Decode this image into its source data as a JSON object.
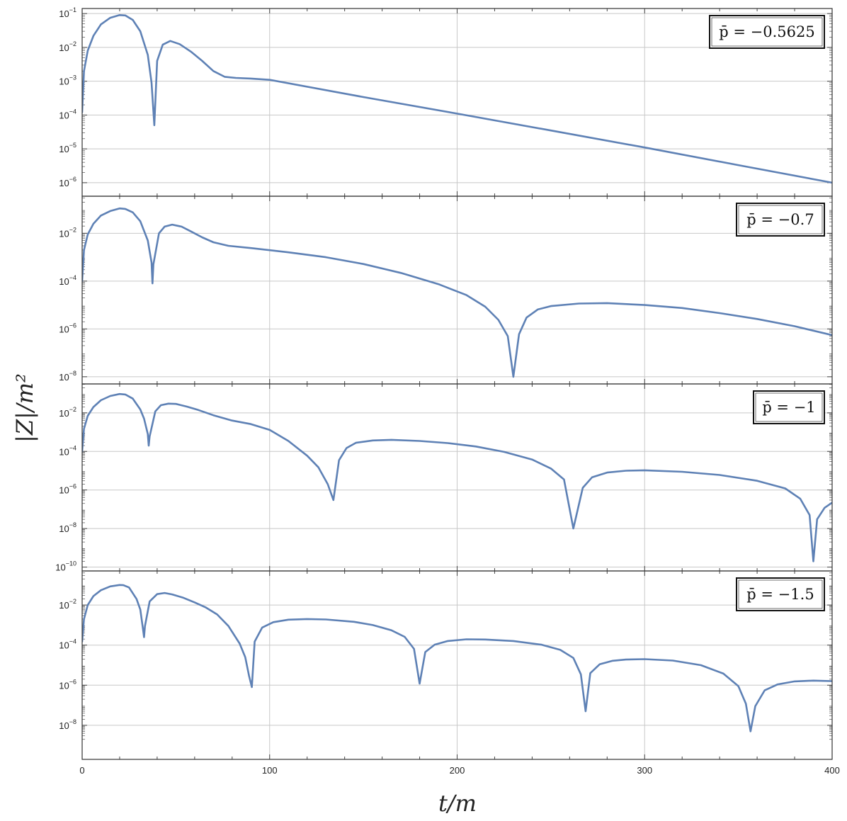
{
  "chart_data": {
    "type": "line",
    "xlabel": "t/m",
    "ylabel": "|Z|/m²",
    "xlim": [
      0,
      400
    ],
    "x_ticks": [
      0,
      100,
      200,
      300,
      400
    ],
    "x_tick_labels": [
      "0",
      "100",
      "200",
      "300",
      "400"
    ],
    "y_scale": "log",
    "grid": true,
    "line_color": "#5e81b5",
    "legend_position": "top-right",
    "panels": [
      {
        "label": "p̄ = −0.5625",
        "ylim_exp": [
          -6.4,
          -0.85
        ],
        "y_tick_exps": [
          -1,
          -2,
          -3,
          -4,
          -5,
          -6
        ],
        "series": [
          {
            "x": [
              0,
              1,
              3,
              6,
              10,
              15,
              20,
              23,
              27,
              31,
              35,
              37,
              38.5,
              40,
              43,
              47,
              52,
              58,
              64,
              70,
              76,
              82,
              90,
              100,
              150,
              200,
              250,
              300,
              350,
              400
            ],
            "y": [
              0.00012,
              0.002,
              0.008,
              0.022,
              0.048,
              0.075,
              0.09,
              0.088,
              0.065,
              0.03,
              0.006,
              0.0009,
              5e-05,
              0.004,
              0.012,
              0.0155,
              0.0125,
              0.0075,
              0.004,
              0.002,
              0.00135,
              0.00125,
              0.0012,
              0.0011,
              0.00034,
              0.00011,
              3.5e-05,
              1.1e-05,
              3.3e-06,
              1e-06
            ]
          }
        ]
      },
      {
        "label": "p̄ = −0.7",
        "ylim_exp": [
          -8.3,
          -0.45
        ],
        "y_tick_exps": [
          -2,
          -4,
          -6,
          -8
        ],
        "series": [
          {
            "x": [
              0,
              1,
              3,
              6,
              10,
              15,
              20,
              23,
              27,
              31,
              35,
              37,
              37.5,
              38,
              41,
              44,
              48,
              53,
              58,
              64,
              70,
              78,
              90,
              110,
              130,
              150,
              170,
              190,
              205,
              215,
              222,
              227,
              230,
              233,
              237,
              243,
              250,
              265,
              280,
              300,
              320,
              340,
              360,
              380,
              400
            ],
            "y": [
              0.0001,
              0.002,
              0.009,
              0.025,
              0.055,
              0.085,
              0.11,
              0.105,
              0.075,
              0.032,
              0.005,
              0.0006,
              8e-05,
              0.0005,
              0.01,
              0.019,
              0.023,
              0.019,
              0.012,
              0.0068,
              0.0042,
              0.003,
              0.0024,
              0.0016,
              0.001,
              0.00052,
              0.00022,
              7.5e-05,
              2.6e-05,
              8.5e-06,
              2.4e-06,
              5e-07,
              1e-08,
              6e-07,
              3e-06,
              6.5e-06,
              9e-06,
              1.15e-05,
              1.2e-05,
              1e-05,
              7.5e-06,
              4.6e-06,
              2.6e-06,
              1.3e-06,
              5.5e-07
            ]
          }
        ]
      },
      {
        "label": "p̄ = −1",
        "ylim_exp": [
          -10.2,
          -0.5
        ],
        "y_tick_exps": [
          -2,
          -4,
          -6,
          -8,
          -10
        ],
        "series": [
          {
            "x": [
              0,
              1,
              3,
              6,
              10,
              15,
              20,
              23,
              27,
              31,
              33,
              35,
              35.5,
              36,
              39,
              42,
              46,
              50,
              56,
              62,
              70,
              80,
              90,
              100,
              110,
              120,
              126,
              131,
              134,
              137,
              141,
              146,
              155,
              165,
              180,
              195,
              210,
              225,
              240,
              250,
              257,
              262,
              267,
              272,
              280,
              290,
              300,
              320,
              340,
              360,
              375,
              383,
              388,
              390,
              392,
              396,
              400
            ],
            "y": [
              0.0001,
              0.0015,
              0.007,
              0.02,
              0.045,
              0.075,
              0.095,
              0.09,
              0.055,
              0.015,
              0.005,
              0.0008,
              0.0002,
              0.0006,
              0.012,
              0.025,
              0.03,
              0.029,
              0.021,
              0.014,
              0.0075,
              0.004,
              0.0026,
              0.0013,
              0.00035,
              6e-05,
              1.5e-05,
              2e-06,
              3e-07,
              3.5e-05,
              0.00015,
              0.00028,
              0.00037,
              0.0004,
              0.00035,
              0.00027,
              0.00018,
              9.5e-05,
              3.8e-05,
              1.3e-05,
              3.5e-06,
              1e-08,
              1.3e-06,
              4.6e-06,
              8e-06,
              1e-05,
              1.05e-05,
              8.8e-06,
              6e-06,
              3e-06,
              1.2e-06,
              3.5e-07,
              5e-08,
              2e-10,
              3e-08,
              1.2e-07,
              2.2e-07
            ]
          }
        ]
      },
      {
        "label": "p̄ = −1.5",
        "ylim_exp": [
          -9.7,
          -0.3
        ],
        "y_tick_exps": [
          -2,
          -4,
          -6,
          -8
        ],
        "series": [
          {
            "x": [
              0,
              1,
              3,
              6,
              10,
              15,
              20,
              22,
              25,
              29,
              31,
              32.5,
              33,
              33.5,
              36,
              40,
              44,
              48,
              54,
              60,
              66,
              72,
              78,
              84,
              87,
              89,
              90.5,
              92,
              96,
              102,
              110,
              120,
              130,
              145,
              155,
              165,
              172,
              177,
              180,
              183,
              188,
              195,
              205,
              215,
              230,
              245,
              255,
              262,
              266,
              268.5,
              271,
              276,
              283,
              290,
              300,
              315,
              330,
              342,
              350,
              354,
              356.5,
              359,
              364,
              371,
              380,
              390,
              400
            ],
            "y": [
              0.00015,
              0.002,
              0.01,
              0.028,
              0.055,
              0.085,
              0.1,
              0.098,
              0.075,
              0.02,
              0.006,
              0.0006,
              0.00025,
              0.0009,
              0.015,
              0.035,
              0.04,
              0.034,
              0.023,
              0.0135,
              0.0075,
              0.0034,
              0.0009,
              0.00012,
              2.5e-05,
              3e-06,
              8e-07,
              0.00015,
              0.00075,
              0.0014,
              0.00185,
              0.002,
              0.0019,
              0.00145,
              0.001,
              0.00055,
              0.00026,
              6.5e-05,
              1.2e-06,
              4.5e-05,
              0.000105,
              0.00016,
              0.000195,
              0.00019,
              0.00016,
              0.000105,
              5.8e-05,
              2.3e-05,
              3.5e-06,
              5e-08,
              4e-06,
              1.1e-05,
              1.65e-05,
              1.9e-05,
              2e-05,
              1.7e-05,
              1e-05,
              3.8e-06,
              9e-07,
              1.2e-07,
              5e-09,
              9e-08,
              5.5e-07,
              1.1e-06,
              1.55e-06,
              1.7e-06,
              1.6e-06
            ]
          }
        ]
      }
    ]
  }
}
